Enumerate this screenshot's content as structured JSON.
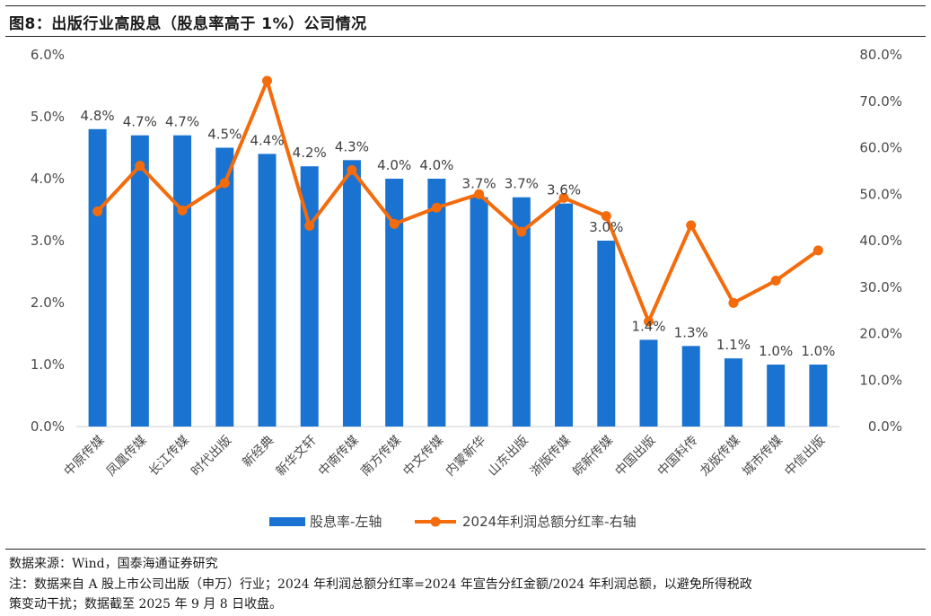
{
  "title": "图8：出版行业高股息（股息率高于 1%）公司情况",
  "source": "数据来源：Wind，国泰海通证券研究",
  "note_line1": "注：数据来自 A 股上市公司出版（申万）行业；2024 年利润总额分红率=2024 年宣告分红金额/2024 年利润总额，以避免所得税政",
  "note_line2": "策变动干扰；数据截至 2025 年 9 月 8 日收盘。",
  "chart_data": {
    "type": "bar",
    "categories": [
      "中原传媒",
      "凤凰传媒",
      "长江传媒",
      "时代出版",
      "新经典",
      "新华文轩",
      "中南传媒",
      "南方传媒",
      "中文传媒",
      "内蒙新华",
      "山东出版",
      "浙版传媒",
      "皖新传媒",
      "中国出版",
      "中国科传",
      "龙版传媒",
      "城市传媒",
      "中信出版"
    ],
    "series": [
      {
        "name": "股息率-左轴",
        "type": "bar",
        "axis": "left",
        "color": "#1a73d1",
        "values": [
          4.8,
          4.7,
          4.7,
          4.5,
          4.4,
          4.2,
          4.3,
          4.0,
          4.0,
          3.7,
          3.7,
          3.6,
          3.0,
          1.4,
          1.3,
          1.1,
          1.0,
          1.0
        ],
        "labels": [
          "4.8%",
          "4.7%",
          "4.7%",
          "4.5%",
          "4.4%",
          "4.2%",
          "4.3%",
          "4.0%",
          "4.0%",
          "3.7%",
          "3.7%",
          "3.6%",
          "3.0%",
          "1.4%",
          "1.3%",
          "1.1%",
          "1.0%",
          "1.0%"
        ]
      },
      {
        "name": "2024年利润总额分红率-右轴",
        "type": "line",
        "axis": "right",
        "color": "#f46b0c",
        "values": [
          46.3,
          56.1,
          46.5,
          52.4,
          74.4,
          43.2,
          55.2,
          43.6,
          47.1,
          50.0,
          41.9,
          49.2,
          45.3,
          22.6,
          43.3,
          26.6,
          31.4,
          37.9
        ]
      }
    ],
    "y_left": {
      "min": 0,
      "max": 6,
      "step": 1,
      "ticks": [
        "0.0%",
        "1.0%",
        "2.0%",
        "3.0%",
        "4.0%",
        "5.0%",
        "6.0%"
      ]
    },
    "y_right": {
      "min": 0,
      "max": 80,
      "step": 10,
      "ticks": [
        "0.0%",
        "10.0%",
        "20.0%",
        "30.0%",
        "40.0%",
        "50.0%",
        "60.0%",
        "70.0%",
        "80.0%"
      ]
    },
    "legend_position": "bottom",
    "grid": false
  }
}
